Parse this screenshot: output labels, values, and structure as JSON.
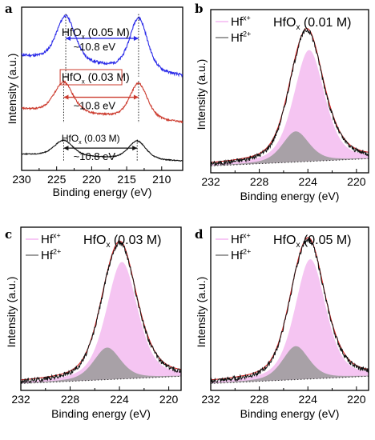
{
  "chart_data": [
    {
      "panel": "a",
      "type": "line",
      "xlabel": "Binding energy (eV)",
      "ylabel": "Intensity (a.u.)",
      "xlim": [
        230,
        207
      ],
      "xticks": [
        230,
        225,
        220,
        215,
        210
      ],
      "x_reversed": true,
      "y_ticks_shown": false,
      "separation_label": "~10.8 eV",
      "series": [
        {
          "name": "HfOx (0.05 M)",
          "label_main": "HfO",
          "label_sub": "x",
          "label_tail": " (0.05 M)",
          "color": "#2a2ae8",
          "peaks": [
            223.7,
            213.3
          ],
          "offset": 2.0
        },
        {
          "name": "HfOx (0.03 M)",
          "label_main": "HfO",
          "label_sub": "x",
          "label_tail": " (0.03 M)",
          "color": "#cc3b2e",
          "peaks": [
            224.0,
            213.3
          ],
          "offset": 1.0
        },
        {
          "name": "HfOx (0.03 M)",
          "label_main": "HfO",
          "label_sub": "x",
          "label_tail": " (0.03 M)",
          "color": "#111111",
          "peaks": [
            224.0,
            213.5
          ],
          "offset": 0.0
        }
      ]
    },
    {
      "panel": "b",
      "type": "area",
      "title_main": "HfO",
      "title_sub": "x",
      "title_tail": " (0.01 M)",
      "xlabel": "Binding energy (eV)",
      "ylabel": "Intensity (a.u.)",
      "xlim": [
        232,
        219
      ],
      "xticks": [
        232,
        228,
        224,
        220
      ],
      "legend": [
        {
          "main": "Hf",
          "sup": "x+",
          "color": "#f7c9f5"
        },
        {
          "main": "Hf",
          "sup": "2+",
          "color": "#9e9e9e"
        }
      ],
      "components": [
        {
          "name": "Hf x+",
          "center": 223.9,
          "fwhm": 3.0,
          "height": 0.8,
          "color": "#f5c5f2"
        },
        {
          "name": "Hf 2+",
          "center": 225.0,
          "fwhm": 2.6,
          "height": 0.22,
          "color": "#9a9a9a"
        }
      ]
    },
    {
      "panel": "c",
      "type": "area",
      "title_main": "HfO",
      "title_sub": "x",
      "title_tail": " (0.03 M)",
      "xlabel": "Binding energy (eV)",
      "ylabel": "Intensity (a.u.)",
      "xlim": [
        232,
        219
      ],
      "xticks": [
        232,
        228,
        224,
        220
      ],
      "legend": [
        {
          "main": "Hf",
          "sup": "x+",
          "color": "#f7c9f5"
        },
        {
          "main": "Hf",
          "sup": "2+",
          "color": "#9e9e9e"
        }
      ],
      "components": [
        {
          "name": "Hf x+",
          "center": 223.8,
          "fwhm": 3.0,
          "height": 0.84,
          "color": "#f5c5f2"
        },
        {
          "name": "Hf 2+",
          "center": 225.0,
          "fwhm": 2.6,
          "height": 0.23,
          "color": "#9a9a9a"
        }
      ]
    },
    {
      "panel": "d",
      "type": "area",
      "title_main": "HfO",
      "title_sub": "x",
      "title_tail": " (0.05 M)",
      "xlabel": "Binding energy (eV)",
      "ylabel": "Intensity (a.u.)",
      "xlim": [
        232,
        219
      ],
      "xticks": [
        232,
        228,
        224,
        220
      ],
      "legend": [
        {
          "main": "Hf",
          "sup": "x+",
          "color": "#f7c9f5"
        },
        {
          "main": "Hf",
          "sup": "2+",
          "color": "#9e9e9e"
        }
      ],
      "components": [
        {
          "name": "Hf x+",
          "center": 223.8,
          "fwhm": 3.0,
          "height": 0.86,
          "color": "#f5c5f2"
        },
        {
          "name": "Hf 2+",
          "center": 225.0,
          "fwhm": 2.6,
          "height": 0.24,
          "color": "#9a9a9a"
        }
      ]
    }
  ]
}
